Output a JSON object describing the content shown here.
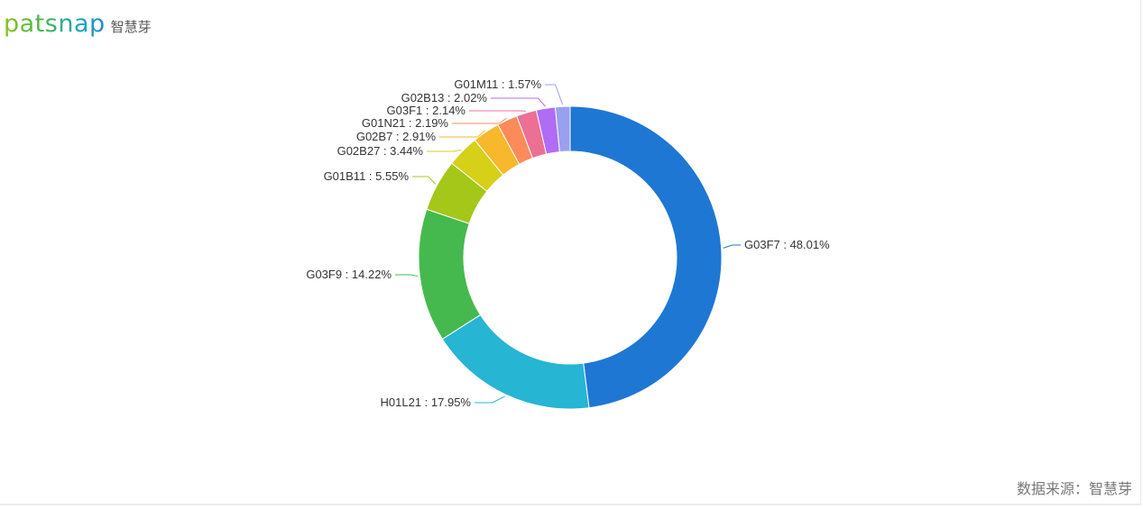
{
  "brand": {
    "logo_word": "patsnap",
    "logo_cn": "智慧芽"
  },
  "source_text": "数据来源：智慧芽",
  "chart_data": {
    "type": "pie",
    "donut": true,
    "title": "",
    "label_separator": " : ",
    "slices": [
      {
        "name": "G03F7",
        "value": 48.01,
        "label": "48.01%",
        "color": "#1f77d4"
      },
      {
        "name": "H01L21",
        "value": 17.95,
        "label": "17.95%",
        "color": "#26b5d3"
      },
      {
        "name": "G03F9",
        "value": 14.22,
        "label": "14.22%",
        "color": "#46b94e"
      },
      {
        "name": "G01B11",
        "value": 5.55,
        "label": "5.55%",
        "color": "#a5c71a"
      },
      {
        "name": "G02B27",
        "value": 3.44,
        "label": "3.44%",
        "color": "#d6d019"
      },
      {
        "name": "G02B7",
        "value": 2.91,
        "label": "2.91%",
        "color": "#f7b82c"
      },
      {
        "name": "G01N21",
        "value": 2.19,
        "label": "2.19%",
        "color": "#fb8c5a"
      },
      {
        "name": "G03F1",
        "value": 2.14,
        "label": "2.14%",
        "color": "#ec6f94"
      },
      {
        "name": "G02B13",
        "value": 2.02,
        "label": "2.02%",
        "color": "#b06cf5"
      },
      {
        "name": "G01M11",
        "value": 1.57,
        "label": "1.57%",
        "color": "#9aa0f0"
      }
    ]
  }
}
